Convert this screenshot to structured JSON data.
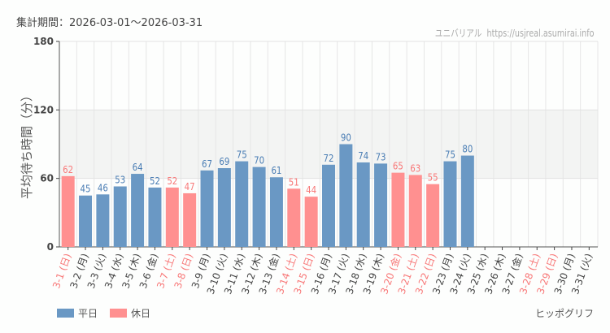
{
  "period_label": "集計期間：2026-03-01〜2026-03-31",
  "watermark": "ユニバリアル  https://usjreal.asumirai.info",
  "credit": "ヒッポグリフ",
  "colors": {
    "weekday": "#6a98c4",
    "holiday": "#ff9090",
    "weekday_text": "#4a7db4",
    "holiday_text": "#f87878"
  },
  "chart_data": {
    "type": "bar",
    "ylabel": "平均待ち時間（分）",
    "ylim": [
      0,
      180
    ],
    "yticks": [
      0,
      60,
      120,
      180
    ],
    "shaded_band": [
      60,
      120
    ],
    "grid": true,
    "legend_position": "bottom-left",
    "legend": [
      {
        "name": "平日",
        "kind": "weekday"
      },
      {
        "name": "休日",
        "kind": "holiday"
      }
    ],
    "categories": [
      "3-1 (日)",
      "3-2 (月)",
      "3-3 (火)",
      "3-4 (水)",
      "3-5 (木)",
      "3-6 (金)",
      "3-7 (土)",
      "3-8 (日)",
      "3-9 (月)",
      "3-10 (火)",
      "3-11 (水)",
      "3-12 (木)",
      "3-13 (金)",
      "3-14 (土)",
      "3-15 (日)",
      "3-16 (月)",
      "3-17 (火)",
      "3-18 (水)",
      "3-19 (木)",
      "3-20 (金)",
      "3-21 (土)",
      "3-22 (日)",
      "3-23 (月)",
      "3-24 (火)",
      "3-25 (水)",
      "3-26 (木)",
      "3-27 (金)",
      "3-28 (土)",
      "3-29 (日)",
      "3-30 (月)",
      "3-31 (火)"
    ],
    "holiday": [
      true,
      false,
      false,
      false,
      false,
      false,
      true,
      true,
      false,
      false,
      false,
      false,
      false,
      true,
      true,
      false,
      false,
      false,
      false,
      true,
      true,
      true,
      false,
      false,
      false,
      false,
      false,
      true,
      true,
      false,
      false
    ],
    "values": [
      62,
      45,
      46,
      53,
      64,
      52,
      52,
      47,
      67,
      69,
      75,
      70,
      61,
      51,
      44,
      72,
      90,
      74,
      73,
      65,
      63,
      55,
      75,
      80,
      null,
      null,
      null,
      null,
      null,
      null,
      null
    ]
  }
}
